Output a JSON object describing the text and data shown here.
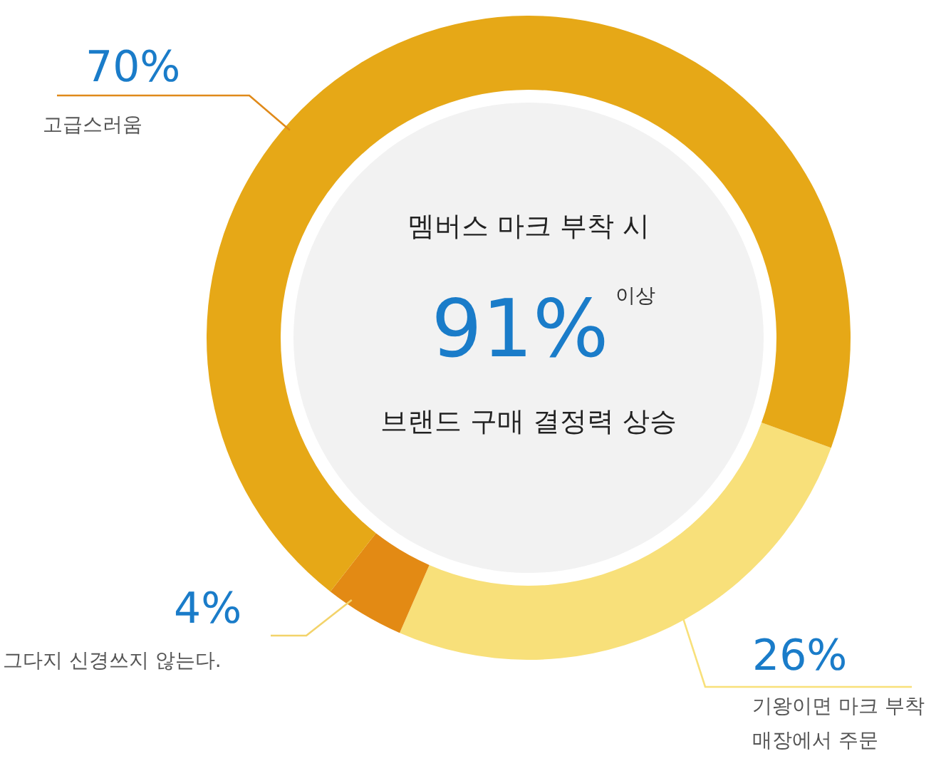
{
  "chart_data": {
    "type": "donut",
    "categories": [
      "고급스러움",
      "기왕이면 마크 부착 매장에서 주문",
      "그다지 신경쓰지 않는다."
    ],
    "values": [
      70,
      26,
      4
    ],
    "colors": [
      "#e6a817",
      "#f8e07a",
      "#e38a14"
    ],
    "value_labels": [
      "70%",
      "26%",
      "4%"
    ],
    "annotations": [
      "멤버스 마크 부착 시",
      "91%",
      "이상",
      "브랜드 구매 결정력 상승"
    ]
  }
}
